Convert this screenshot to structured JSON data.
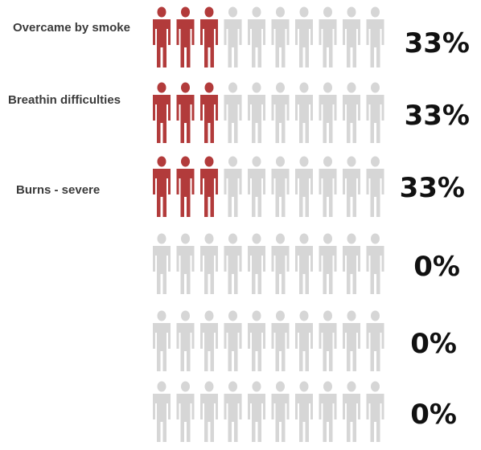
{
  "chart_data": {
    "type": "pictograph",
    "icons_per_row": 10,
    "highlight_color": "#b23b3b",
    "base_color": "#d6d6d6",
    "rows": [
      {
        "label": "Overcame by smoke",
        "value": 33,
        "display": "33%"
      },
      {
        "label": "Breathin difficulties",
        "value": 33,
        "display": "33%"
      },
      {
        "label": "Burns - severe",
        "value": 33,
        "display": "33%"
      },
      {
        "label": "",
        "value": 0,
        "display": "0%"
      },
      {
        "label": "",
        "value": 0,
        "display": "0%"
      },
      {
        "label": "",
        "value": 0,
        "display": "0%"
      }
    ]
  }
}
